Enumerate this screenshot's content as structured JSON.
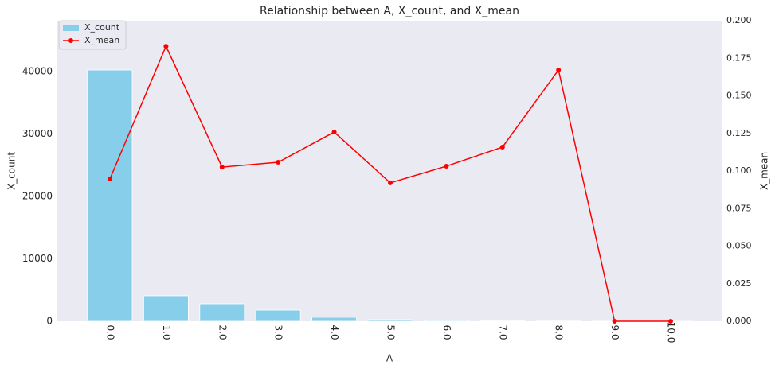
{
  "chart_data": {
    "type": "bar",
    "title": "Relationship between A, X_count, and X_mean",
    "x_label": "A",
    "y_label": "X_count",
    "y2_label": "X_mean",
    "categories": [
      "0.0",
      "1.0",
      "2.0",
      "3.0",
      "4.0",
      "5.0",
      "6.0",
      "7.0",
      "8.0",
      "9.0",
      "10.0"
    ],
    "series": [
      {
        "name": "X_count",
        "type": "bar",
        "color": "#87ceeb",
        "values": [
          40250,
          4080,
          2800,
          1780,
          640,
          250,
          130,
          50,
          30,
          5,
          3
        ]
      },
      {
        "name": "X_mean",
        "type": "line",
        "axis": "y2",
        "color": "#ff0000",
        "values": [
          0.0947,
          0.183,
          0.1026,
          0.1058,
          0.1259,
          0.0921,
          0.1032,
          0.1159,
          0.1672,
          0,
          0
        ]
      }
    ],
    "ylim": [
      0,
      48150
    ],
    "yticks": [
      0,
      10000,
      20000,
      30000,
      40000
    ],
    "y2lim": [
      0,
      0.2
    ],
    "y2ticks": [
      {
        "value": 0,
        "label": "0.000"
      },
      {
        "value": 0.025,
        "label": "0.025"
      },
      {
        "value": 0.05,
        "label": "0.050"
      },
      {
        "value": 0.075,
        "label": "0.075"
      },
      {
        "value": 0.1,
        "label": "0.100"
      },
      {
        "value": 0.125,
        "label": "0.125"
      },
      {
        "value": 0.15,
        "label": "0.150"
      },
      {
        "value": 0.175,
        "label": "0.175"
      },
      {
        "value": 0.2,
        "label": "0.200"
      }
    ],
    "grid": false,
    "legend": "upper left"
  }
}
